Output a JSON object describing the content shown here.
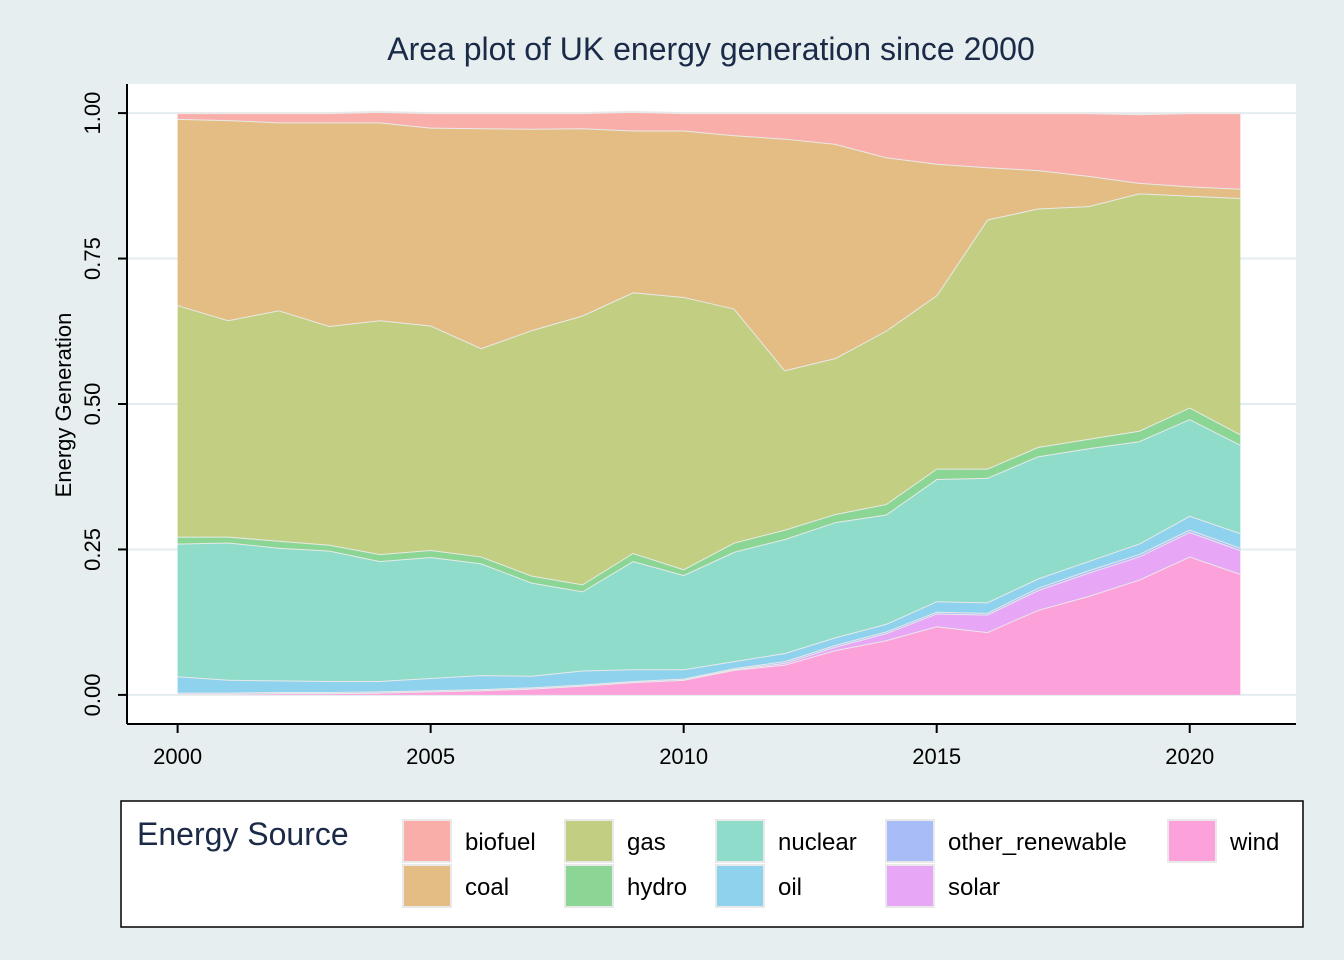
{
  "chart_data": {
    "type": "area",
    "stacked": true,
    "title": "Area plot of UK energy generation since 2000",
    "ylabel": "Energy Generation",
    "xlabel": "",
    "xlim": [
      1999,
      2022.1
    ],
    "ylim": [
      -0.05,
      1.05
    ],
    "xticks": [
      2000,
      2005,
      2010,
      2015,
      2020
    ],
    "yticks": [
      0,
      0.25,
      0.5,
      0.75,
      1
    ],
    "ytick_labels": [
      "0.00",
      "0.25",
      "0.50",
      "0.75",
      "1.00"
    ],
    "grid": "horizontal",
    "x": [
      2000,
      2001,
      2002,
      2003,
      2004,
      2005,
      2006,
      2007,
      2008,
      2009,
      2010,
      2011,
      2012,
      2013,
      2014,
      2015,
      2016,
      2017,
      2018,
      2019,
      2020,
      2021
    ],
    "stack_order": [
      "wind",
      "solar",
      "other_renewable",
      "oil",
      "nuclear",
      "hydro",
      "gas",
      "coal",
      "biofuel"
    ],
    "series": [
      {
        "name": "wind",
        "color": "#fda1db",
        "values": [
          0.002,
          0.002,
          0.003,
          0.003,
          0.004,
          0.006,
          0.008,
          0.011,
          0.016,
          0.022,
          0.026,
          0.043,
          0.052,
          0.077,
          0.094,
          0.118,
          0.108,
          0.146,
          0.17,
          0.198,
          0.238,
          0.208
        ]
      },
      {
        "name": "solar",
        "color": "#e8a6f6",
        "values": [
          0,
          0,
          0,
          0,
          0,
          0,
          0,
          0,
          0,
          0,
          0,
          0.001,
          0.003,
          0.006,
          0.012,
          0.022,
          0.03,
          0.034,
          0.04,
          0.04,
          0.042,
          0.041
        ]
      },
      {
        "name": "other_renewable",
        "color": "#a8bcf8",
        "values": [
          0.002,
          0.002,
          0.002,
          0.002,
          0.002,
          0.002,
          0.002,
          0.002,
          0.002,
          0.002,
          0.002,
          0.002,
          0.003,
          0.003,
          0.003,
          0.003,
          0.003,
          0.004,
          0.004,
          0.004,
          0.004,
          0.004
        ]
      },
      {
        "name": "oil",
        "color": "#8fd2ee",
        "values": [
          0.028,
          0.022,
          0.02,
          0.019,
          0.018,
          0.021,
          0.024,
          0.02,
          0.024,
          0.02,
          0.016,
          0.012,
          0.014,
          0.013,
          0.013,
          0.018,
          0.018,
          0.016,
          0.016,
          0.018,
          0.024,
          0.025
        ]
      },
      {
        "name": "nuclear",
        "color": "#8edcc9",
        "values": [
          0.228,
          0.236,
          0.228,
          0.224,
          0.206,
          0.208,
          0.192,
          0.16,
          0.136,
          0.186,
          0.162,
          0.188,
          0.196,
          0.198,
          0.188,
          0.21,
          0.214,
          0.21,
          0.194,
          0.176,
          0.166,
          0.152
        ]
      },
      {
        "name": "hydro",
        "color": "#8bd694",
        "values": [
          0.012,
          0.01,
          0.012,
          0.01,
          0.012,
          0.012,
          0.012,
          0.012,
          0.012,
          0.014,
          0.01,
          0.016,
          0.016,
          0.014,
          0.018,
          0.018,
          0.016,
          0.016,
          0.016,
          0.018,
          0.02,
          0.018
        ]
      },
      {
        "name": "gas",
        "color": "#c2ce82",
        "values": [
          0.398,
          0.372,
          0.396,
          0.376,
          0.402,
          0.386,
          0.358,
          0.422,
          0.462,
          0.448,
          0.468,
          0.402,
          0.274,
          0.268,
          0.298,
          0.298,
          0.428,
          0.41,
          0.4,
          0.408,
          0.364,
          0.406
        ]
      },
      {
        "name": "coal",
        "color": "#e3bd83",
        "values": [
          0.32,
          0.344,
          0.323,
          0.35,
          0.34,
          0.34,
          0.378,
          0.346,
          0.322,
          0.278,
          0.286,
          0.298,
          0.398,
          0.368,
          0.298,
          0.226,
          0.09,
          0.066,
          0.052,
          0.018,
          0.016,
          0.016
        ]
      },
      {
        "name": "biofuel",
        "color": "#f9aeaa",
        "values": [
          0.01,
          0.012,
          0.016,
          0.016,
          0.018,
          0.025,
          0.026,
          0.027,
          0.026,
          0.032,
          0.03,
          0.038,
          0.044,
          0.053,
          0.076,
          0.087,
          0.093,
          0.098,
          0.108,
          0.118,
          0.126,
          0.13
        ]
      }
    ],
    "legend": {
      "title": "Energy Source",
      "placement": "bottom",
      "columns": [
        [
          "biofuel",
          "coal"
        ],
        [
          "gas",
          "hydro"
        ],
        [
          "nuclear",
          "oil"
        ],
        [
          "other_renewable",
          "solar"
        ],
        [
          "wind"
        ]
      ]
    }
  }
}
